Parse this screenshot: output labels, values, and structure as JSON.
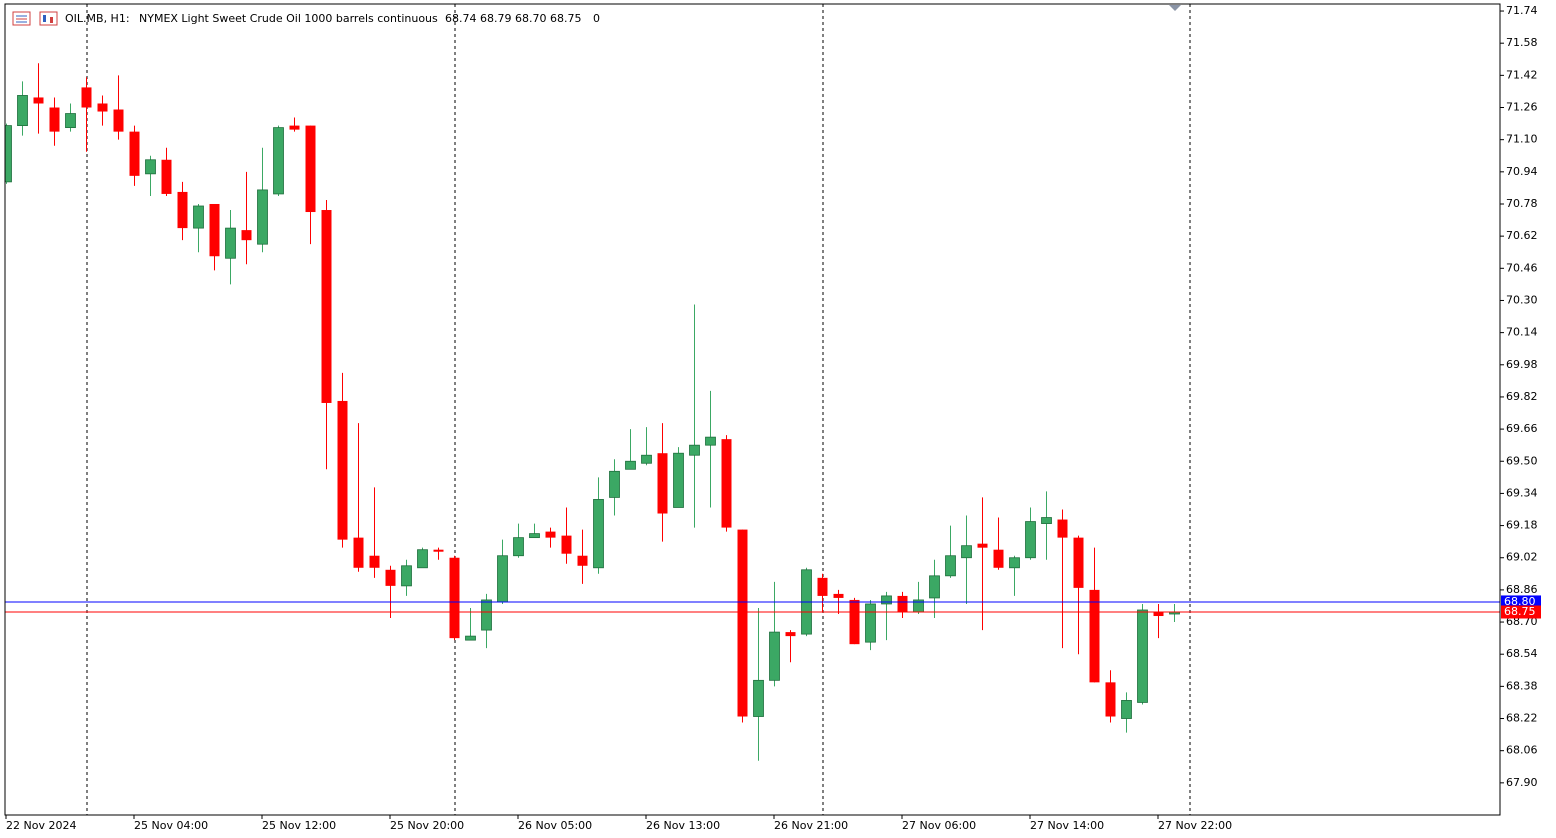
{
  "chart_data": {
    "type": "candlestick",
    "symbol": "OIL.MB, H1:",
    "title": "NYMEX Light Sweet Crude Oil 1000 barrels continuous",
    "quote": "68.74 68.79 68.70 68.75",
    "volume": "0",
    "categories": [
      "22 Nov 2024",
      null,
      null,
      null,
      null,
      null,
      null,
      null,
      "25 Nov 04:00",
      null,
      null,
      null,
      null,
      null,
      null,
      null,
      "25 Nov 12:00",
      null,
      null,
      null,
      null,
      null,
      null,
      null,
      "25 Nov 20:00",
      null,
      null,
      null,
      null,
      null,
      null,
      null,
      "26 Nov 05:00",
      null,
      null,
      null,
      null,
      null,
      null,
      null,
      "26 Nov 13:00",
      null,
      null,
      null,
      null,
      null,
      null,
      null,
      "26 Nov 21:00",
      null,
      null,
      null,
      null,
      null,
      null,
      null,
      "27 Nov 06:00",
      null,
      null,
      null,
      null,
      null,
      null,
      null,
      "27 Nov 14:00",
      null,
      null,
      null,
      null,
      null,
      null,
      null,
      "27 Nov 22:00",
      null
    ],
    "open": [
      70.89,
      71.17,
      71.31,
      71.26,
      71.16,
      71.36,
      71.28,
      71.25,
      71.14,
      70.93,
      71.0,
      70.84,
      70.66,
      70.78,
      70.51,
      70.65,
      70.58,
      70.83,
      71.17,
      71.17,
      70.75,
      69.8,
      69.12,
      69.03,
      68.96,
      68.88,
      68.97,
      69.06,
      69.02,
      68.61,
      68.66,
      68.8,
      69.03,
      69.12,
      69.15,
      69.13,
      69.03,
      68.97,
      69.32,
      69.46,
      69.49,
      69.54,
      69.27,
      69.53,
      69.58,
      69.61,
      69.16,
      68.23,
      68.41,
      68.65,
      68.64,
      68.92,
      68.84,
      68.81,
      68.6,
      68.79,
      68.83,
      68.75,
      68.82,
      68.93,
      69.02,
      69.09,
      69.06,
      68.97,
      69.02,
      69.19,
      69.21,
      69.12,
      68.86,
      68.4,
      68.22,
      68.3,
      68.75,
      68.74
    ],
    "high": [
      71.18,
      71.39,
      71.48,
      71.31,
      71.28,
      71.41,
      71.32,
      71.42,
      71.17,
      71.02,
      71.06,
      70.89,
      70.78,
      70.78,
      70.75,
      70.94,
      71.06,
      71.17,
      71.21,
      71.17,
      70.8,
      69.94,
      69.69,
      69.37,
      68.98,
      69.01,
      69.07,
      69.07,
      69.03,
      68.77,
      68.84,
      69.11,
      69.19,
      69.19,
      69.17,
      69.27,
      69.16,
      69.42,
      69.51,
      69.66,
      69.67,
      69.69,
      69.57,
      70.28,
      69.85,
      69.63,
      69.16,
      68.77,
      68.9,
      68.66,
      68.97,
      68.94,
      68.86,
      68.82,
      68.81,
      68.85,
      68.85,
      68.9,
      69.01,
      69.18,
      69.23,
      69.32,
      69.22,
      69.03,
      69.27,
      69.35,
      69.26,
      69.13,
      69.07,
      68.46,
      68.35,
      68.79,
      68.79,
      68.79
    ],
    "low": [
      70.88,
      71.12,
      71.13,
      71.07,
      71.14,
      71.04,
      71.17,
      71.1,
      70.87,
      70.82,
      70.82,
      70.6,
      70.54,
      70.45,
      70.38,
      70.48,
      70.54,
      70.82,
      71.14,
      70.58,
      69.46,
      69.07,
      68.95,
      68.92,
      68.72,
      68.83,
      68.97,
      69.01,
      68.61,
      68.61,
      68.57,
      68.79,
      69.02,
      69.12,
      69.07,
      68.99,
      68.89,
      68.94,
      69.23,
      69.46,
      69.48,
      69.1,
      69.27,
      69.17,
      69.27,
      69.15,
      68.2,
      68.01,
      68.38,
      68.5,
      68.63,
      68.75,
      68.74,
      68.59,
      68.56,
      68.61,
      68.72,
      68.74,
      68.72,
      68.92,
      68.79,
      68.66,
      68.96,
      68.83,
      69.01,
      69.01,
      68.57,
      68.54,
      68.4,
      68.2,
      68.15,
      68.29,
      68.62,
      68.7
    ],
    "close": [
      71.17,
      71.32,
      71.28,
      71.14,
      71.23,
      71.26,
      71.24,
      71.14,
      70.92,
      71.0,
      70.83,
      70.66,
      70.77,
      70.52,
      70.66,
      70.6,
      70.85,
      71.16,
      71.15,
      70.74,
      69.79,
      69.11,
      68.97,
      68.97,
      68.88,
      68.98,
      69.06,
      69.05,
      68.62,
      68.63,
      68.81,
      69.03,
      69.12,
      69.14,
      69.12,
      69.04,
      68.98,
      69.31,
      69.45,
      69.5,
      69.53,
      69.24,
      69.54,
      69.58,
      69.62,
      69.17,
      68.23,
      68.41,
      68.65,
      68.63,
      68.96,
      68.83,
      68.82,
      68.59,
      68.79,
      68.83,
      68.75,
      68.81,
      68.93,
      69.03,
      69.08,
      69.07,
      68.97,
      69.02,
      69.2,
      69.22,
      69.12,
      68.87,
      68.4,
      68.23,
      68.31,
      68.76,
      68.73,
      68.75
    ],
    "up_color": "#3ba864",
    "down_color": "#ff0000",
    "ylim": [
      67.74,
      71.775
    ],
    "yticks": [
      {
        "value": 67.9,
        "label": "67.90"
      },
      68.06,
      68.22,
      68.38,
      68.54,
      {
        "value": 68.7,
        "label": "68.70"
      },
      68.86,
      69.02,
      69.18,
      69.34,
      {
        "value": 69.5,
        "label": "69.50"
      },
      69.66,
      69.82,
      69.98,
      70.14,
      {
        "value": 70.3,
        "label": "70.30"
      },
      70.46,
      70.62,
      70.78,
      70.94,
      {
        "value": 71.1,
        "label": "71.10"
      },
      71.26,
      71.42,
      71.58,
      71.74
    ],
    "ask_line": {
      "value": 68.8,
      "label": "68.80",
      "color": "#0000ff"
    },
    "bid_line": {
      "value": 68.75,
      "label": "68.75",
      "color": "#ff0000"
    }
  }
}
